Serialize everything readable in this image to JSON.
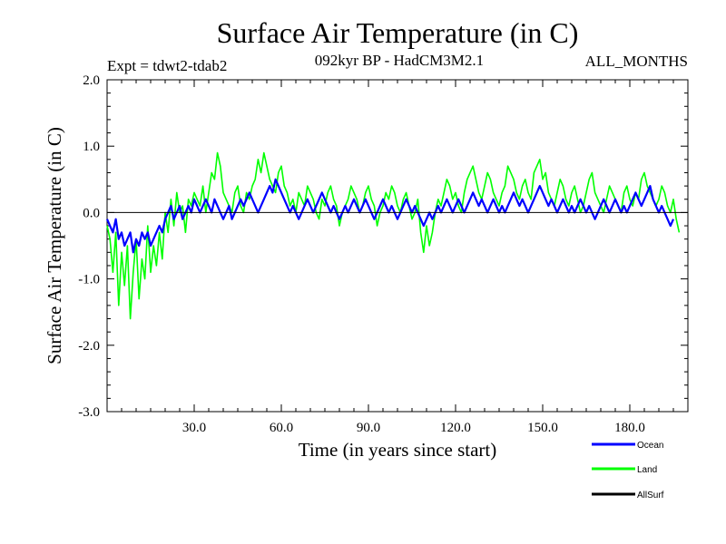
{
  "chart_data": {
    "type": "line",
    "title": "Surface Air Temperature (in C)",
    "subtitle_left": "Expt = tdwt2-tdab2",
    "subtitle_center": "092kyr BP - HadCM3M2.1",
    "subtitle_right": "ALL_MONTHS",
    "xlabel": "Time (in years since start)",
    "ylabel": "Surface Air Temperature (in C)",
    "xlim": [
      0,
      200
    ],
    "ylim": [
      -3.0,
      2.0
    ],
    "xticks": [
      30,
      60,
      90,
      120,
      150,
      180
    ],
    "xtick_labels": [
      "30.0",
      "60.0",
      "90.0",
      "120.0",
      "150.0",
      "180.0"
    ],
    "yticks": [
      -3,
      -2,
      -1,
      0,
      1,
      2
    ],
    "ytick_labels": [
      "-3.0",
      "-2.0",
      "-1.0",
      "0.0",
      "1.0",
      "2.0"
    ],
    "zero_line": true,
    "legend_position": "bottom-right",
    "series": [
      {
        "name": "Land",
        "color": "#00ff00",
        "x_step": 1,
        "x_start": 0,
        "values": [
          -0.2,
          -0.4,
          -0.9,
          -0.3,
          -1.4,
          -0.6,
          -1.1,
          -0.5,
          -1.6,
          -0.9,
          -0.4,
          -1.3,
          -0.7,
          -1.0,
          -0.2,
          -0.9,
          -0.5,
          -0.8,
          -0.3,
          -0.7,
          0.0,
          -0.3,
          0.2,
          -0.2,
          0.3,
          0.0,
          0.1,
          -0.3,
          0.2,
          0.1,
          0.3,
          0.2,
          0.1,
          0.4,
          0.0,
          0.3,
          0.6,
          0.5,
          0.9,
          0.7,
          0.3,
          0.2,
          0.1,
          0.0,
          0.3,
          0.4,
          0.1,
          0.0,
          0.3,
          0.2,
          0.4,
          0.5,
          0.8,
          0.6,
          0.9,
          0.7,
          0.5,
          0.4,
          0.3,
          0.6,
          0.7,
          0.4,
          0.3,
          0.1,
          0.2,
          0.0,
          0.3,
          0.2,
          0.1,
          0.4,
          0.3,
          0.2,
          0.0,
          -0.1,
          0.2,
          0.1,
          0.3,
          0.4,
          0.2,
          0.1,
          -0.2,
          0.0,
          0.1,
          0.2,
          0.4,
          0.3,
          0.2,
          0.0,
          0.1,
          0.3,
          0.4,
          0.2,
          0.1,
          -0.2,
          0.0,
          0.1,
          0.3,
          0.2,
          0.4,
          0.3,
          0.1,
          0.0,
          0.2,
          0.3,
          0.1,
          -0.1,
          0.0,
          0.2,
          -0.3,
          -0.6,
          -0.2,
          -0.5,
          -0.3,
          0.0,
          0.2,
          0.1,
          0.3,
          0.5,
          0.4,
          0.2,
          0.3,
          0.1,
          0.0,
          0.3,
          0.5,
          0.6,
          0.7,
          0.5,
          0.3,
          0.2,
          0.4,
          0.6,
          0.5,
          0.3,
          0.2,
          0.1,
          0.3,
          0.4,
          0.7,
          0.6,
          0.5,
          0.3,
          0.2,
          0.4,
          0.5,
          0.3,
          0.2,
          0.6,
          0.7,
          0.8,
          0.5,
          0.6,
          0.3,
          0.2,
          0.1,
          0.3,
          0.5,
          0.4,
          0.2,
          0.1,
          0.3,
          0.4,
          0.2,
          0.0,
          0.1,
          0.3,
          0.5,
          0.6,
          0.3,
          0.2,
          0.1,
          0.0,
          0.2,
          0.4,
          0.3,
          0.2,
          0.1,
          0.0,
          0.3,
          0.4,
          0.2,
          0.1,
          0.3,
          0.2,
          0.5,
          0.6,
          0.4,
          0.3,
          0.2,
          0.1,
          0.2,
          0.4,
          0.3,
          0.1,
          0.0,
          0.2,
          -0.1,
          -0.3
        ]
      },
      {
        "name": "Ocean",
        "color": "#0000ff",
        "x_step": 1,
        "x_start": 0,
        "values": [
          -0.1,
          -0.2,
          -0.3,
          -0.1,
          -0.4,
          -0.3,
          -0.5,
          -0.4,
          -0.3,
          -0.6,
          -0.4,
          -0.5,
          -0.3,
          -0.4,
          -0.3,
          -0.5,
          -0.4,
          -0.3,
          -0.2,
          -0.3,
          -0.1,
          0.0,
          0.1,
          -0.1,
          0.0,
          0.1,
          -0.1,
          0.0,
          0.1,
          0.0,
          0.2,
          0.1,
          0.0,
          0.1,
          0.2,
          0.1,
          0.0,
          0.2,
          0.1,
          0.0,
          -0.1,
          0.0,
          0.1,
          -0.1,
          0.0,
          0.1,
          0.2,
          0.1,
          0.2,
          0.3,
          0.2,
          0.1,
          0.0,
          0.1,
          0.2,
          0.3,
          0.4,
          0.3,
          0.5,
          0.4,
          0.3,
          0.2,
          0.1,
          0.0,
          0.1,
          0.0,
          -0.1,
          0.0,
          0.1,
          0.2,
          0.1,
          0.0,
          0.1,
          0.2,
          0.3,
          0.2,
          0.1,
          0.0,
          0.1,
          0.0,
          -0.1,
          0.0,
          0.1,
          0.0,
          0.1,
          0.2,
          0.1,
          0.0,
          0.1,
          0.2,
          0.1,
          0.0,
          -0.1,
          0.0,
          0.1,
          0.2,
          0.1,
          0.0,
          0.1,
          0.0,
          -0.1,
          0.0,
          0.1,
          0.2,
          0.1,
          0.0,
          0.1,
          0.0,
          -0.1,
          -0.2,
          -0.1,
          0.0,
          -0.1,
          0.0,
          0.1,
          0.0,
          0.1,
          0.2,
          0.1,
          0.0,
          0.1,
          0.2,
          0.1,
          0.0,
          0.1,
          0.2,
          0.3,
          0.2,
          0.1,
          0.2,
          0.1,
          0.0,
          0.1,
          0.2,
          0.1,
          0.0,
          0.1,
          0.0,
          0.1,
          0.2,
          0.3,
          0.2,
          0.1,
          0.2,
          0.1,
          0.0,
          0.1,
          0.2,
          0.3,
          0.4,
          0.3,
          0.2,
          0.1,
          0.2,
          0.1,
          0.0,
          0.1,
          0.2,
          0.1,
          0.0,
          0.1,
          0.0,
          0.1,
          0.2,
          0.1,
          0.0,
          0.1,
          0.0,
          -0.1,
          0.0,
          0.1,
          0.2,
          0.1,
          0.0,
          0.1,
          0.2,
          0.1,
          0.0,
          0.1,
          0.0,
          0.1,
          0.2,
          0.3,
          0.2,
          0.1,
          0.2,
          0.3,
          0.4,
          0.2,
          0.1,
          0.0,
          0.1,
          0.0,
          -0.1,
          -0.2,
          -0.1
        ]
      },
      {
        "name": "AllSurf",
        "color": "#000000",
        "values": []
      }
    ]
  }
}
